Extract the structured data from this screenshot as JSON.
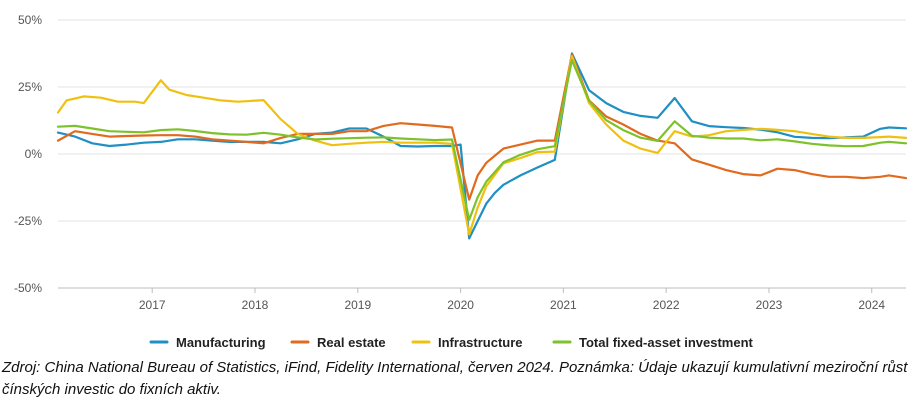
{
  "chart_data": {
    "type": "line",
    "x_range": [
      "2016-02",
      "2024-05"
    ],
    "ylim": [
      -50,
      50
    ],
    "y_ticks": [
      50,
      25,
      0,
      -25,
      -50
    ],
    "y_tick_labels": [
      "50%",
      "25%",
      "0%",
      "-25%",
      "-50%"
    ],
    "x_ticks": [
      "2017",
      "2018",
      "2019",
      "2020",
      "2021",
      "2022",
      "2023",
      "2024"
    ],
    "grid": "horizontal",
    "legend_position": "bottom",
    "series": [
      {
        "name": "Manufacturing",
        "color": "#1f8fc4",
        "points": [
          [
            "2016-02",
            8
          ],
          [
            "2016-04",
            6.5
          ],
          [
            "2016-06",
            4
          ],
          [
            "2016-08",
            3
          ],
          [
            "2016-10",
            3.5
          ],
          [
            "2016-12",
            4.2
          ],
          [
            "2017-02",
            4.5
          ],
          [
            "2017-04",
            5.5
          ],
          [
            "2017-06",
            5.5
          ],
          [
            "2017-08",
            5
          ],
          [
            "2017-10",
            4.5
          ],
          [
            "2017-12",
            4.5
          ],
          [
            "2018-02",
            4.5
          ],
          [
            "2018-04",
            4
          ],
          [
            "2018-06",
            5.5
          ],
          [
            "2018-08",
            7.5
          ],
          [
            "2018-10",
            8
          ],
          [
            "2018-12",
            9.5
          ],
          [
            "2019-02",
            9.5
          ],
          [
            "2019-04",
            6.5
          ],
          [
            "2019-06",
            3
          ],
          [
            "2019-08",
            2.8
          ],
          [
            "2019-10",
            3
          ],
          [
            "2019-12",
            3
          ],
          [
            "2020-01",
            3.5
          ],
          [
            "2020-02",
            -31.5
          ],
          [
            "2020-03",
            -25
          ],
          [
            "2020-04",
            -18.5
          ],
          [
            "2020-05",
            -14.5
          ],
          [
            "2020-06",
            -11.5
          ],
          [
            "2020-08",
            -8
          ],
          [
            "2020-10",
            -5
          ],
          [
            "2020-12",
            -2.2
          ],
          [
            "2021-02",
            37.5
          ],
          [
            "2021-04",
            23.8
          ],
          [
            "2021-06",
            19
          ],
          [
            "2021-08",
            15.7
          ],
          [
            "2021-10",
            14.2
          ],
          [
            "2021-12",
            13.5
          ],
          [
            "2022-02",
            20.9
          ],
          [
            "2022-04",
            12.2
          ],
          [
            "2022-06",
            10.4
          ],
          [
            "2022-08",
            10
          ],
          [
            "2022-10",
            9.7
          ],
          [
            "2022-12",
            9.1
          ],
          [
            "2023-02",
            8.1
          ],
          [
            "2023-04",
            6.4
          ],
          [
            "2023-06",
            6
          ],
          [
            "2023-08",
            5.9
          ],
          [
            "2023-10",
            6.2
          ],
          [
            "2023-12",
            6.5
          ],
          [
            "2024-02",
            9.4
          ],
          [
            "2024-03",
            9.9
          ],
          [
            "2024-05",
            9.6
          ]
        ]
      },
      {
        "name": "Real estate",
        "color": "#e06a1e",
        "points": [
          [
            "2016-02",
            5
          ],
          [
            "2016-04",
            8.5
          ],
          [
            "2016-06",
            7.5
          ],
          [
            "2016-08",
            6.5
          ],
          [
            "2016-10",
            6.7
          ],
          [
            "2016-12",
            6.9
          ],
          [
            "2017-02",
            7
          ],
          [
            "2017-04",
            7
          ],
          [
            "2017-06",
            6.5
          ],
          [
            "2017-08",
            5.5
          ],
          [
            "2017-10",
            5
          ],
          [
            "2017-12",
            4.5
          ],
          [
            "2018-02",
            4
          ],
          [
            "2018-04",
            6
          ],
          [
            "2018-06",
            7.5
          ],
          [
            "2018-08",
            7.5
          ],
          [
            "2018-10",
            7.5
          ],
          [
            "2018-12",
            8.5
          ],
          [
            "2019-02",
            8.5
          ],
          [
            "2019-04",
            10.5
          ],
          [
            "2019-06",
            11.5
          ],
          [
            "2019-08",
            11
          ],
          [
            "2019-10",
            10.5
          ],
          [
            "2019-12",
            9.9
          ],
          [
            "2020-02",
            -17
          ],
          [
            "2020-03",
            -8
          ],
          [
            "2020-04",
            -3.3
          ],
          [
            "2020-06",
            2
          ],
          [
            "2020-08",
            3.5
          ],
          [
            "2020-10",
            5
          ],
          [
            "2020-12",
            5
          ],
          [
            "2021-02",
            37
          ],
          [
            "2021-04",
            20
          ],
          [
            "2021-06",
            14
          ],
          [
            "2021-08",
            11
          ],
          [
            "2021-10",
            7.5
          ],
          [
            "2021-12",
            5
          ],
          [
            "2022-02",
            4
          ],
          [
            "2022-04",
            -2
          ],
          [
            "2022-06",
            -4
          ],
          [
            "2022-08",
            -6
          ],
          [
            "2022-10",
            -7.5
          ],
          [
            "2022-12",
            -8
          ],
          [
            "2023-02",
            -5.5
          ],
          [
            "2023-04",
            -6
          ],
          [
            "2023-06",
            -7.5
          ],
          [
            "2023-08",
            -8.5
          ],
          [
            "2023-10",
            -8.5
          ],
          [
            "2023-12",
            -9
          ],
          [
            "2024-02",
            -8.5
          ],
          [
            "2024-03",
            -8
          ],
          [
            "2024-05",
            -9
          ]
        ]
      },
      {
        "name": "Infrastructure",
        "color": "#f0c010",
        "points": [
          [
            "2016-02",
            15.5
          ],
          [
            "2016-03",
            20
          ],
          [
            "2016-05",
            21.5
          ],
          [
            "2016-07",
            21
          ],
          [
            "2016-09",
            19.5
          ],
          [
            "2016-11",
            19.5
          ],
          [
            "2016-12",
            19
          ],
          [
            "2017-02",
            27.5
          ],
          [
            "2017-03",
            24
          ],
          [
            "2017-05",
            22
          ],
          [
            "2017-07",
            21
          ],
          [
            "2017-09",
            20
          ],
          [
            "2017-11",
            19.5
          ],
          [
            "2017-12",
            19.7
          ],
          [
            "2018-02",
            20.1
          ],
          [
            "2018-04",
            13
          ],
          [
            "2018-06",
            7.5
          ],
          [
            "2018-08",
            5
          ],
          [
            "2018-10",
            3.3
          ],
          [
            "2018-12",
            3.8
          ],
          [
            "2019-02",
            4.2
          ],
          [
            "2019-04",
            4.5
          ],
          [
            "2019-06",
            4.2
          ],
          [
            "2019-08",
            4.2
          ],
          [
            "2019-10",
            4.2
          ],
          [
            "2019-12",
            3.8
          ],
          [
            "2020-02",
            -30
          ],
          [
            "2020-03",
            -20
          ],
          [
            "2020-04",
            -12
          ],
          [
            "2020-06",
            -3.5
          ],
          [
            "2020-08",
            -1.5
          ],
          [
            "2020-10",
            0.7
          ],
          [
            "2020-12",
            0.9
          ],
          [
            "2021-02",
            36.5
          ],
          [
            "2021-04",
            19
          ],
          [
            "2021-06",
            11
          ],
          [
            "2021-08",
            5
          ],
          [
            "2021-10",
            2
          ],
          [
            "2021-12",
            0.4
          ],
          [
            "2022-02",
            8.5
          ],
          [
            "2022-04",
            6.5
          ],
          [
            "2022-06",
            7
          ],
          [
            "2022-08",
            8.5
          ],
          [
            "2022-10",
            9
          ],
          [
            "2022-12",
            9.4
          ],
          [
            "2023-02",
            9
          ],
          [
            "2023-04",
            8.5
          ],
          [
            "2023-06",
            7.5
          ],
          [
            "2023-08",
            6.5
          ],
          [
            "2023-10",
            6
          ],
          [
            "2023-12",
            6
          ],
          [
            "2024-02",
            6.3
          ],
          [
            "2024-03",
            6.5
          ],
          [
            "2024-05",
            6
          ]
        ]
      },
      {
        "name": "Total fixed-asset investment",
        "color": "#7dc22a",
        "points": [
          [
            "2016-02",
            10.2
          ],
          [
            "2016-04",
            10.5
          ],
          [
            "2016-06",
            9.5
          ],
          [
            "2016-08",
            8.5
          ],
          [
            "2016-10",
            8.3
          ],
          [
            "2016-12",
            8.1
          ],
          [
            "2017-02",
            8.9
          ],
          [
            "2017-04",
            9.2
          ],
          [
            "2017-06",
            8.6
          ],
          [
            "2017-08",
            7.8
          ],
          [
            "2017-10",
            7.3
          ],
          [
            "2017-12",
            7.2
          ],
          [
            "2018-02",
            7.9
          ],
          [
            "2018-04",
            7.2
          ],
          [
            "2018-06",
            6.2
          ],
          [
            "2018-08",
            5.4
          ],
          [
            "2018-10",
            5.7
          ],
          [
            "2018-12",
            5.9
          ],
          [
            "2019-02",
            6.1
          ],
          [
            "2019-04",
            6.2
          ],
          [
            "2019-06",
            5.8
          ],
          [
            "2019-08",
            5.5
          ],
          [
            "2019-10",
            5.2
          ],
          [
            "2019-12",
            5.4
          ],
          [
            "2020-02",
            -24.5
          ],
          [
            "2020-03",
            -16.1
          ],
          [
            "2020-04",
            -10.3
          ],
          [
            "2020-06",
            -3.1
          ],
          [
            "2020-08",
            -0.3
          ],
          [
            "2020-10",
            1.8
          ],
          [
            "2020-12",
            2.9
          ],
          [
            "2021-02",
            35
          ],
          [
            "2021-04",
            19.9
          ],
          [
            "2021-06",
            12.6
          ],
          [
            "2021-08",
            8.9
          ],
          [
            "2021-10",
            6.1
          ],
          [
            "2021-12",
            4.9
          ],
          [
            "2022-02",
            12.2
          ],
          [
            "2022-04",
            6.8
          ],
          [
            "2022-06",
            6.1
          ],
          [
            "2022-08",
            5.8
          ],
          [
            "2022-10",
            5.8
          ],
          [
            "2022-12",
            5.1
          ],
          [
            "2023-02",
            5.5
          ],
          [
            "2023-04",
            4.7
          ],
          [
            "2023-06",
            3.8
          ],
          [
            "2023-08",
            3.2
          ],
          [
            "2023-10",
            2.9
          ],
          [
            "2023-12",
            3
          ],
          [
            "2024-02",
            4.2
          ],
          [
            "2024-03",
            4.5
          ],
          [
            "2024-05",
            4
          ]
        ]
      }
    ]
  },
  "legend": {
    "items": [
      {
        "label": "Manufacturing",
        "color": "#1f8fc4"
      },
      {
        "label": "Real estate",
        "color": "#e06a1e"
      },
      {
        "label": "Infrastructure",
        "color": "#f0c010"
      },
      {
        "label": "Total fixed-asset investment",
        "color": "#7dc22a"
      }
    ]
  },
  "source_note": "Zdroj: China National Bureau of Statistics, iFind, Fidelity International, červen 2024. Poznámka: Údaje ukazují kumulativní meziroční růst čínských investic do fixních aktiv."
}
